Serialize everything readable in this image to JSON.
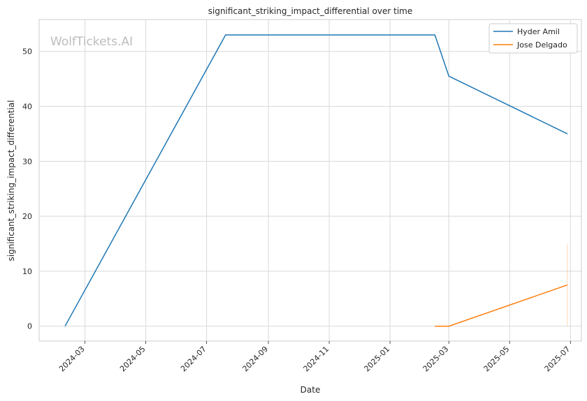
{
  "watermark": "WolfTickets.AI",
  "chart_data": {
    "type": "line",
    "title": "significant_striking_impact_differential over time",
    "xlabel": "Date",
    "ylabel": "significant_striking_impact_differential",
    "x_range": [
      "2024-01-15",
      "2025-07-12"
    ],
    "ylim": [
      -2.7,
      55.8
    ],
    "x_ticks": [
      "2024-03-01",
      "2024-05-01",
      "2024-07-01",
      "2024-09-01",
      "2024-11-01",
      "2025-01-01",
      "2025-03-01",
      "2025-05-01",
      "2025-07-01"
    ],
    "x_tick_labels": [
      "2024-03",
      "2024-05",
      "2024-07",
      "2024-09",
      "2024-11",
      "2025-01",
      "2025-03",
      "2025-05",
      "2025-07"
    ],
    "y_ticks": [
      0,
      10,
      20,
      30,
      40,
      50
    ],
    "grid": true,
    "legend_position": "top-right",
    "series": [
      {
        "name": "Hyder Amil",
        "color": "#1f77b4",
        "points": [
          {
            "x": "2024-02-10",
            "y": 0
          },
          {
            "x": "2024-07-20",
            "y": 53
          },
          {
            "x": "2025-02-15",
            "y": 53
          },
          {
            "x": "2025-03-01",
            "y": 45.5
          },
          {
            "x": "2025-06-28",
            "y": 35
          }
        ]
      },
      {
        "name": "Jose Delgado",
        "color": "#ff7f0e",
        "points": [
          {
            "x": "2025-02-15",
            "y": 0
          },
          {
            "x": "2025-03-01",
            "y": 0
          },
          {
            "x": "2025-06-28",
            "y": 7.5
          }
        ],
        "band": {
          "x": "2025-06-28",
          "low": 0,
          "high": 15
        }
      }
    ]
  }
}
